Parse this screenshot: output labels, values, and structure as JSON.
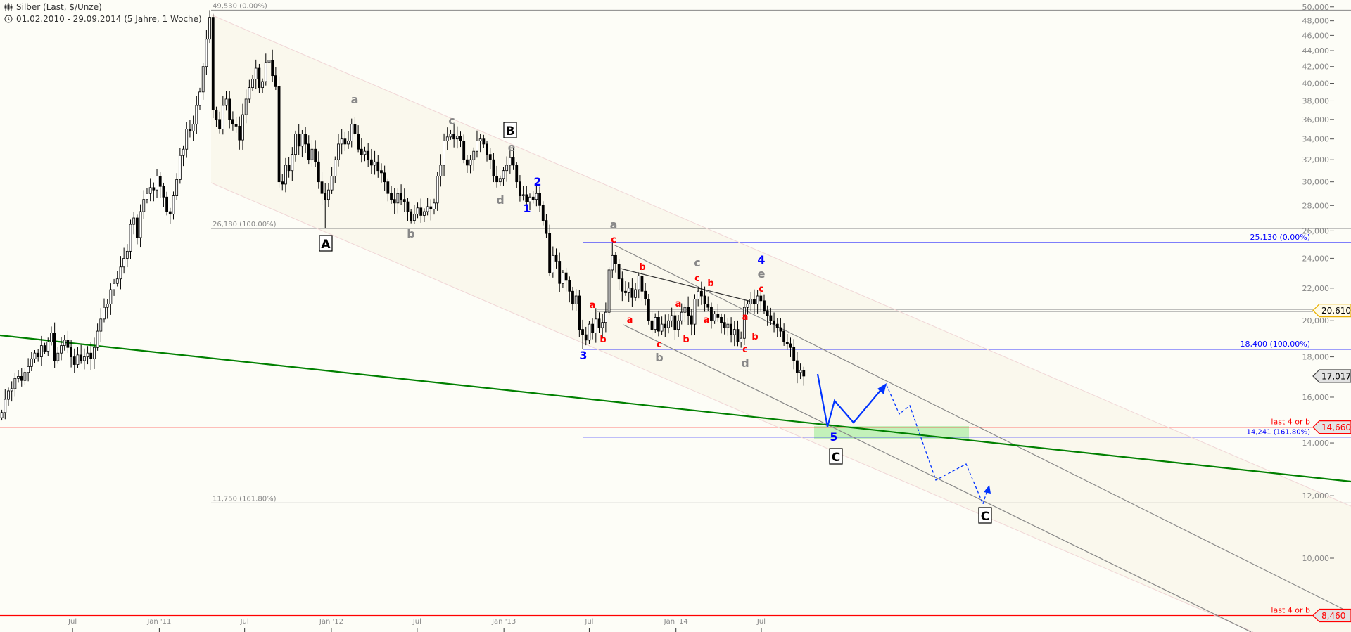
{
  "header": {
    "title": "Silber (Last, $/Unze)",
    "range": "01.02.2010 - 29.09.2014 (5 Jahre, 1 Woche)",
    "title_icon": "candlestick-chart-icon",
    "range_icon": "clock-icon"
  },
  "colors": {
    "background": "#fdfdf7",
    "up_candle": "#ffffff",
    "down_candle": "#000000",
    "fib_gray": "#888888",
    "fib_blue": "#0000ff",
    "support_red": "#ff0000",
    "trendline_green": "#008000",
    "target_zone": "#b8f0b0",
    "projection_blue": "#0033ff"
  },
  "chart_data": {
    "type": "candlestick",
    "title": "Silber (Last, $/Unze)",
    "period": "weekly",
    "start": "2010-02-01",
    "end": "2014-09-29",
    "y_scale": "log",
    "ylim": [
      8,
      50
    ],
    "grid": false,
    "y_ticks": [
      "50,000",
      "48,000",
      "46,000",
      "44,000",
      "42,000",
      "40,000",
      "38,000",
      "36,000",
      "34,000",
      "32,000",
      "30,000",
      "28,000",
      "26,000",
      "24,000",
      "22,000",
      "20,000",
      "18,000",
      "16,000",
      "14,000",
      "12,000",
      "10,000"
    ],
    "x_ticks": [
      {
        "label": "Jul",
        "date": "2010-07-01"
      },
      {
        "label": "Jan '11",
        "date": "2011-01-01"
      },
      {
        "label": "Jul",
        "date": "2011-07-01"
      },
      {
        "label": "Jan '12",
        "date": "2012-01-01"
      },
      {
        "label": "Jul",
        "date": "2012-07-01"
      },
      {
        "label": "Jan '13",
        "date": "2013-01-01"
      },
      {
        "label": "Jul",
        "date": "2013-07-01"
      },
      {
        "label": "Jan '14",
        "date": "2014-01-01"
      },
      {
        "label": "Jul",
        "date": "2014-07-01"
      }
    ],
    "weekly_close": [
      15.3,
      15.9,
      16.3,
      16.4,
      16.9,
      17.0,
      16.8,
      17.2,
      17.5,
      17.9,
      18.2,
      18.0,
      18.6,
      18.3,
      18.8,
      19.3,
      17.8,
      18.2,
      18.6,
      18.9,
      18.5,
      18.0,
      17.6,
      18.1,
      17.8,
      18.0,
      18.2,
      17.9,
      18.5,
      19.4,
      20.1,
      20.8,
      21.0,
      21.9,
      22.3,
      22.6,
      23.4,
      24.0,
      24.5,
      26.5,
      27.0,
      25.5,
      27.5,
      28.5,
      29.0,
      29.5,
      29.3,
      30.5,
      29.6,
      28.7,
      27.5,
      27.3,
      28.8,
      30.2,
      32.4,
      33.0,
      35.0,
      34.8,
      35.5,
      37.5,
      39.0,
      42.0,
      45.5,
      48.5,
      37.0,
      36.0,
      35.0,
      37.5,
      38.2,
      36.0,
      35.5,
      35.3,
      33.9,
      36.5,
      38.2,
      39.5,
      40.5,
      41.8,
      39.5,
      40.2,
      42.5,
      42.8,
      40.9,
      39.6,
      30.0,
      29.8,
      31.5,
      31.0,
      32.5,
      34.5,
      33.3,
      34.5,
      33.5,
      32.0,
      33.0,
      31.8,
      30.0,
      29.0,
      28.5,
      29.3,
      30.5,
      32.0,
      33.5,
      34.0,
      33.5,
      33.8,
      35.5,
      34.5,
      33.0,
      32.5,
      32.8,
      32.0,
      31.5,
      31.8,
      31.0,
      30.8,
      30.0,
      29.0,
      28.5,
      28.2,
      29.0,
      28.5,
      28.3,
      27.5,
      26.8,
      27.3,
      27.8,
      27.2,
      27.5,
      27.9,
      27.7,
      28.2,
      30.5,
      31.5,
      33.8,
      34.2,
      34.5,
      34.0,
      34.3,
      33.8,
      32.0,
      31.5,
      32.0,
      32.8,
      33.8,
      34.0,
      33.5,
      32.5,
      32.0,
      30.5,
      30.0,
      30.3,
      31.0,
      31.5,
      32.2,
      31.5,
      30.0,
      28.8,
      28.9,
      28.3,
      28.7,
      28.5,
      29.0,
      28.0,
      26.8,
      25.8,
      23.0,
      24.2,
      23.8,
      22.3,
      23.0,
      22.5,
      21.8,
      21.0,
      21.5,
      19.5,
      19.2,
      18.9,
      19.8,
      19.3,
      20.1,
      19.6,
      19.9,
      20.5,
      23.2,
      24.2,
      23.6,
      22.6,
      21.8,
      21.7,
      22.0,
      21.4,
      21.9,
      22.8,
      21.8,
      21.3,
      20.0,
      19.5,
      20.2,
      19.4,
      19.8,
      19.6,
      20.0,
      20.3,
      19.5,
      20.0,
      20.5,
      20.8,
      20.3,
      19.8,
      21.3,
      21.8,
      21.5,
      21.0,
      20.8,
      20.0,
      20.4,
      20.2,
      19.9,
      19.6,
      19.8,
      19.2,
      19.5,
      18.8,
      19.0,
      20.8,
      21.0,
      21.3,
      21.0,
      21.5,
      21.2,
      20.6,
      20.3,
      20.0,
      19.8,
      19.6,
      19.4,
      18.8,
      18.7,
      18.5,
      17.8,
      17.2,
      17.3,
      17.017
    ],
    "levels": [
      {
        "value": 49.53,
        "label": "49,530 (0.00%)",
        "color": "#888888"
      },
      {
        "value": 26.18,
        "label": "26,180 (100.00%)",
        "color": "#888888"
      },
      {
        "value": 11.75,
        "label": "11,750 (161.80%)",
        "color": "#888888"
      },
      {
        "value": 25.13,
        "label": "25,130 (0.00%)",
        "color": "#0000ff"
      },
      {
        "value": 18.4,
        "label": "18,400 (100.00%)",
        "color": "#0000ff"
      },
      {
        "value": 14.241,
        "label": "14,241 (161.80%)",
        "color": "#0000ff"
      },
      {
        "value": 20.61,
        "label": "",
        "color": "#999999"
      },
      {
        "value": 14.66,
        "label": "last 4 or b",
        "color": "#ff0000"
      },
      {
        "value": 8.46,
        "label": "last 4 or b",
        "color": "#ff0000"
      }
    ],
    "price_tags": [
      {
        "value": 20.61,
        "label": "20,610",
        "style": "yellow"
      },
      {
        "value": 17.017,
        "label": "17,017",
        "style": "last-price"
      },
      {
        "value": 14.66,
        "label": "14,660",
        "style": "red"
      },
      {
        "value": 8.46,
        "label": "8,460",
        "style": "red"
      }
    ],
    "wave_labels": [
      {
        "text": "A",
        "color": "#000000",
        "boxed": true
      },
      {
        "text": "a",
        "color": "#888888"
      },
      {
        "text": "b",
        "color": "#888888"
      },
      {
        "text": "c",
        "color": "#888888"
      },
      {
        "text": "B",
        "color": "#000000",
        "boxed": true
      },
      {
        "text": "d",
        "color": "#888888"
      },
      {
        "text": "e",
        "color": "#888888"
      },
      {
        "text": "1",
        "color": "#0000ff"
      },
      {
        "text": "2",
        "color": "#0000ff"
      },
      {
        "text": "3",
        "color": "#0000ff"
      },
      {
        "text": "a",
        "color": "#888888"
      },
      {
        "text": "c",
        "color": "#ff0000"
      },
      {
        "text": "a",
        "color": "#ff0000"
      },
      {
        "text": "b",
        "color": "#ff0000"
      },
      {
        "text": "a",
        "color": "#ff0000"
      },
      {
        "text": "b",
        "color": "#ff0000"
      },
      {
        "text": "c",
        "color": "#ff0000"
      },
      {
        "text": "b",
        "color": "#888888"
      },
      {
        "text": "a",
        "color": "#ff0000"
      },
      {
        "text": "b",
        "color": "#ff0000"
      },
      {
        "text": "c",
        "color": "#888888"
      },
      {
        "text": "c",
        "color": "#ff0000"
      },
      {
        "text": "b",
        "color": "#ff0000"
      },
      {
        "text": "a",
        "color": "#ff0000"
      },
      {
        "text": "a",
        "color": "#ff0000"
      },
      {
        "text": "b",
        "color": "#ff0000"
      },
      {
        "text": "c",
        "color": "#ff0000"
      },
      {
        "text": "d",
        "color": "#888888"
      },
      {
        "text": "4",
        "color": "#0000ff"
      },
      {
        "text": "e",
        "color": "#888888"
      },
      {
        "text": "c",
        "color": "#ff0000"
      },
      {
        "text": "5",
        "color": "#0000ff"
      },
      {
        "text": "C",
        "color": "#000000",
        "boxed": true
      },
      {
        "text": "C",
        "color": "#000000",
        "boxed": true
      }
    ]
  }
}
